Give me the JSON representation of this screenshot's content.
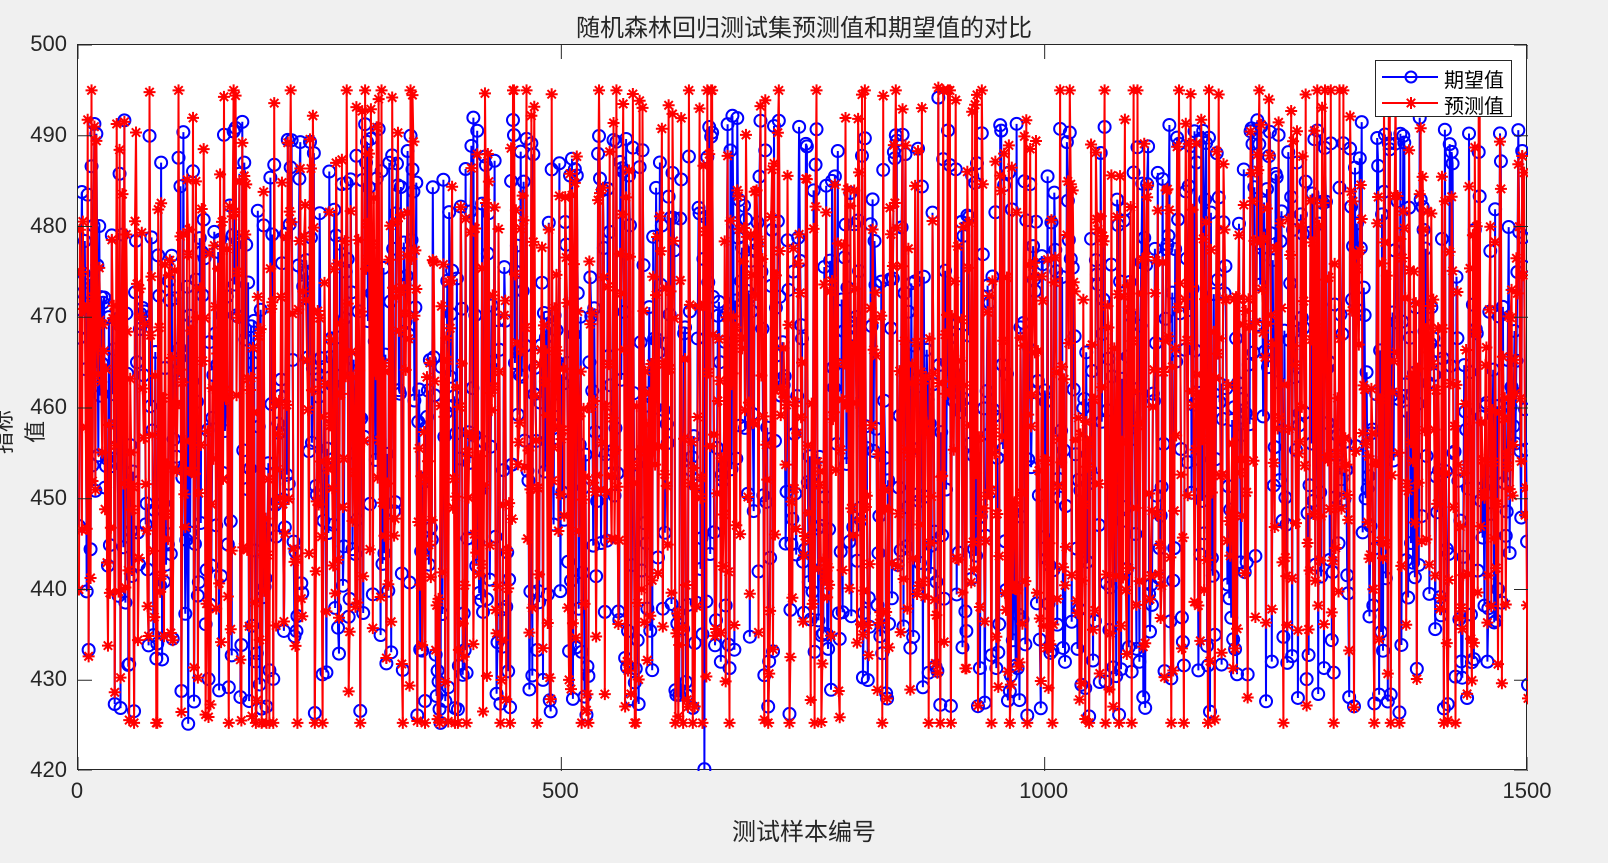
{
  "chart_data": {
    "type": "line",
    "title": "随机森林回归测试集预测值和期望值的对比",
    "xlabel": "测试样本编号",
    "ylabel": "指标值",
    "xlim": [
      0,
      1500
    ],
    "ylim": [
      420,
      500
    ],
    "xticks": [
      "0",
      "500",
      "1000",
      "1500"
    ],
    "yticks": [
      "420",
      "430",
      "440",
      "450",
      "460",
      "470",
      "480",
      "490",
      "500"
    ],
    "grid": false,
    "legend_position": "northeast",
    "n_points": 1500,
    "series": [
      {
        "name": "期望值",
        "color": "#0000ff",
        "marker": "o",
        "value_range": [
          420.2,
          494.2
        ],
        "sample_points": [
          {
            "x": 1,
            "y": 447
          },
          {
            "x": 4,
            "y": 483.8
          },
          {
            "x": 17,
            "y": 491.3
          },
          {
            "x": 114,
            "y": 425.2
          },
          {
            "x": 375,
            "y": 425.3
          },
          {
            "x": 409,
            "y": 492.0
          },
          {
            "x": 648,
            "y": 420.2
          },
          {
            "x": 677,
            "y": 492.2
          },
          {
            "x": 890,
            "y": 494.2
          },
          {
            "x": 1155,
            "y": 490.5
          },
          {
            "x": 1500,
            "y": 429.5
          }
        ]
      },
      {
        "name": "预测值",
        "color": "#ff0000",
        "marker": "*",
        "value_range": [
          425.3,
          495.3
        ],
        "sample_points": [
          {
            "x": 1,
            "y": 440
          },
          {
            "x": 17,
            "y": 491.0
          },
          {
            "x": 40,
            "y": 491.3
          },
          {
            "x": 243,
            "y": 492.2
          },
          {
            "x": 472,
            "y": 493.2
          },
          {
            "x": 890,
            "y": 495.3
          },
          {
            "x": 1232,
            "y": 494.0
          },
          {
            "x": 1500,
            "y": 428
          }
        ]
      }
    ]
  },
  "legend": {
    "items": [
      {
        "label": "期望值",
        "color": "#0000ff"
      },
      {
        "label": "预测值",
        "color": "#ff0000"
      }
    ]
  }
}
